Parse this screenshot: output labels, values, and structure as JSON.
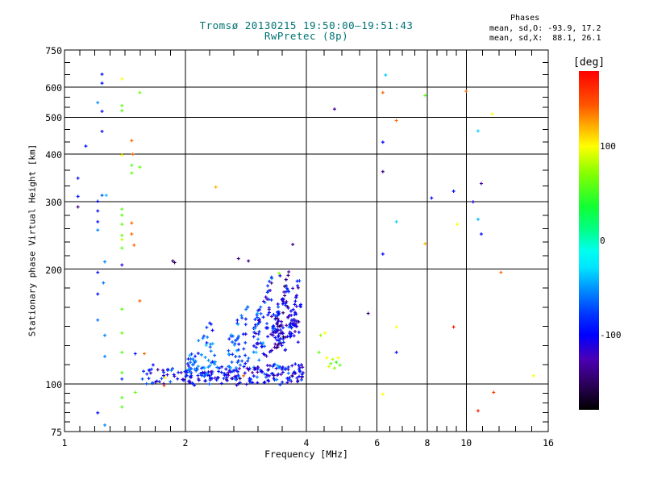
{
  "header": {
    "title": "Tromsø 20130215 19:50:00–19:51:43",
    "subtitle": "RwPretec (8p)",
    "title_color": "#007272"
  },
  "phases": {
    "heading": "Phases",
    "line_o": "mean, sd,O: -93.9, 17.2",
    "line_x": "mean, sd,X:  88.1, 26.1"
  },
  "colorbar": {
    "title": "[deg]",
    "unit": "deg",
    "range": [
      -180,
      180
    ],
    "ticks": [
      {
        "value": 100,
        "label": "100"
      },
      {
        "value": 0,
        "label": "0"
      },
      {
        "value": -100,
        "label": "-100"
      }
    ],
    "stops": [
      {
        "t": 0.0,
        "c": "#ff0000"
      },
      {
        "t": 0.1,
        "c": "#ff5500"
      },
      {
        "t": 0.16,
        "c": "#ffaa00"
      },
      {
        "t": 0.222,
        "c": "#ffff00"
      },
      {
        "t": 0.3,
        "c": "#88ff00"
      },
      {
        "t": 0.4,
        "c": "#11ff33"
      },
      {
        "t": 0.47,
        "c": "#00ff88"
      },
      {
        "t": 0.53,
        "c": "#00ffee"
      },
      {
        "t": 0.58,
        "c": "#00e5ff"
      },
      {
        "t": 0.65,
        "c": "#0088ff"
      },
      {
        "t": 0.72,
        "c": "#0033ff"
      },
      {
        "t": 0.78,
        "c": "#0000ff"
      },
      {
        "t": 0.85,
        "c": "#4b00b5"
      },
      {
        "t": 0.92,
        "c": "#2e0060"
      },
      {
        "t": 1.0,
        "c": "#000000"
      }
    ]
  },
  "chart_data": {
    "type": "scatter",
    "title": "Tromsø 20130215 19:50:00–19:51:43",
    "subtitle": "RwPretec (8p)",
    "xlabel": "Frequency [MHz]",
    "ylabel": "Stationary phase Virtual Height [km]",
    "xscale": "log",
    "yscale": "log",
    "xlim": [
      1,
      16
    ],
    "ylim": [
      75,
      750
    ],
    "grid": true,
    "x_ticks": [
      {
        "value": 1,
        "label": "1"
      },
      {
        "value": 2,
        "label": "2"
      },
      {
        "value": 4,
        "label": "4"
      },
      {
        "value": 6,
        "label": "6"
      },
      {
        "value": 8,
        "label": "8"
      },
      {
        "value": 10,
        "label": "10"
      },
      {
        "value": 16,
        "label": "16"
      }
    ],
    "y_ticks": [
      {
        "value": 75,
        "label": "75"
      },
      {
        "value": 100,
        "label": "100"
      },
      {
        "value": 200,
        "label": "200"
      },
      {
        "value": 300,
        "label": "300"
      },
      {
        "value": 400,
        "label": "400"
      },
      {
        "value": 500,
        "label": "500"
      },
      {
        "value": 600,
        "label": "600"
      },
      {
        "value": 750,
        "label": "750"
      }
    ],
    "x_gridlines": [
      2,
      4,
      6,
      8,
      10
    ],
    "y_gridlines": [
      100,
      200,
      300,
      400,
      500,
      600
    ],
    "x_minor": [
      [
        1,
        2,
        7
      ],
      [
        2,
        4,
        4
      ],
      [
        4,
        6,
        3
      ],
      [
        6,
        8,
        3
      ],
      [
        8,
        10,
        3
      ],
      [
        10,
        16,
        4
      ]
    ],
    "y_minor": [
      [
        750,
        600,
        2
      ],
      [
        600,
        500,
        2
      ],
      [
        500,
        400,
        2
      ],
      [
        400,
        300,
        2
      ],
      [
        300,
        200,
        4
      ],
      [
        200,
        100,
        5
      ],
      [
        100,
        75,
        4
      ]
    ],
    "point_value_format": "[frequency_MHz, virtual_height_km, phase_deg]",
    "points": [
      [
        1.24,
        648,
        -95
      ],
      [
        1.39,
        630,
        100
      ],
      [
        1.24,
        614,
        -95
      ],
      [
        1.54,
        580,
        60
      ],
      [
        1.21,
        546,
        -55
      ],
      [
        1.39,
        536,
        60
      ],
      [
        1.24,
        518,
        -95
      ],
      [
        1.39,
        520,
        55
      ],
      [
        1.24,
        459,
        -95
      ],
      [
        1.47,
        434,
        140
      ],
      [
        1.13,
        420,
        -95
      ],
      [
        1.39,
        398,
        100
      ],
      [
        1.48,
        400,
        140
      ],
      [
        1.47,
        374,
        55
      ],
      [
        1.54,
        370,
        60
      ],
      [
        1.47,
        357,
        60
      ],
      [
        1.08,
        346,
        -95
      ],
      [
        1.08,
        310,
        -95
      ],
      [
        1.24,
        312,
        -70
      ],
      [
        1.27,
        312,
        -40
      ],
      [
        1.21,
        301,
        -95
      ],
      [
        1.08,
        291,
        -140
      ],
      [
        1.21,
        284,
        -95
      ],
      [
        1.39,
        287,
        60
      ],
      [
        1.39,
        277,
        55
      ],
      [
        1.21,
        266,
        -95
      ],
      [
        1.47,
        264,
        140
      ],
      [
        1.39,
        262,
        60
      ],
      [
        1.21,
        253,
        -55
      ],
      [
        1.39,
        245,
        60
      ],
      [
        1.47,
        247,
        140
      ],
      [
        1.39,
        239,
        85
      ],
      [
        1.49,
        231,
        140
      ],
      [
        1.39,
        227,
        60
      ],
      [
        1.26,
        209,
        -55
      ],
      [
        1.39,
        205,
        -110
      ],
      [
        1.21,
        196,
        -95
      ],
      [
        1.25,
        184,
        -60
      ],
      [
        1.21,
        172,
        -95
      ],
      [
        1.54,
        165,
        140
      ],
      [
        1.39,
        157,
        55
      ],
      [
        1.21,
        147,
        -60
      ],
      [
        1.39,
        136,
        60
      ],
      [
        1.26,
        134,
        -55
      ],
      [
        1.26,
        118,
        -55
      ],
      [
        1.39,
        121,
        55
      ],
      [
        1.5,
        120,
        -95
      ],
      [
        1.58,
        120,
        140
      ],
      [
        1.39,
        107,
        55
      ],
      [
        1.39,
        103,
        -80
      ],
      [
        1.78,
        104,
        100
      ],
      [
        1.5,
        95,
        60
      ],
      [
        1.39,
        92,
        55
      ],
      [
        1.39,
        87,
        55
      ],
      [
        1.21,
        84,
        -95
      ],
      [
        1.26,
        78,
        -55
      ],
      [
        1.86,
        210,
        -150
      ],
      [
        1.88,
        208,
        -150
      ],
      [
        2.38,
        328,
        120
      ],
      [
        2.71,
        213,
        -145
      ],
      [
        2.87,
        210,
        -140
      ],
      [
        3.7,
        232,
        -140
      ],
      [
        3.63,
        143,
        100
      ],
      [
        3.42,
        195,
        70
      ],
      [
        3.44,
        192,
        -110
      ],
      [
        3.7,
        178,
        -120
      ],
      [
        2.79,
        105,
        140
      ],
      [
        3.05,
        137,
        100
      ],
      [
        1.72,
        101,
        100
      ],
      [
        1.77,
        99,
        140
      ],
      [
        6.3,
        645,
        -35
      ],
      [
        6.2,
        580,
        140
      ],
      [
        7.9,
        570,
        60
      ],
      [
        10.0,
        585,
        140
      ],
      [
        4.7,
        525,
        -135
      ],
      [
        11.6,
        510,
        100
      ],
      [
        6.7,
        490,
        140
      ],
      [
        10.7,
        460,
        -35
      ],
      [
        6.2,
        430,
        -95
      ],
      [
        6.2,
        360,
        -140
      ],
      [
        10.9,
        335,
        -130
      ],
      [
        9.3,
        320,
        -95
      ],
      [
        8.2,
        307,
        -95
      ],
      [
        10.4,
        300,
        -115
      ],
      [
        6.7,
        266,
        -35
      ],
      [
        9.5,
        262,
        100
      ],
      [
        10.7,
        270,
        -40
      ],
      [
        10.9,
        247,
        -95
      ],
      [
        7.9,
        233,
        120
      ],
      [
        6.2,
        219,
        -95
      ],
      [
        12.2,
        196,
        140
      ],
      [
        5.7,
        153,
        -140
      ],
      [
        4.45,
        136,
        100
      ],
      [
        6.7,
        141,
        100
      ],
      [
        9.3,
        141,
        170
      ],
      [
        6.7,
        121,
        -95
      ],
      [
        14.7,
        105,
        100
      ],
      [
        11.7,
        95,
        155
      ],
      [
        6.2,
        94,
        100
      ],
      [
        10.7,
        85,
        170
      ],
      [
        4.34,
        134,
        75
      ],
      [
        4.3,
        121,
        60
      ],
      [
        4.5,
        117,
        100
      ],
      [
        4.6,
        113,
        60
      ],
      [
        4.65,
        116,
        80
      ],
      [
        4.75,
        114,
        45
      ],
      [
        4.8,
        117,
        100
      ],
      [
        4.85,
        112,
        60
      ],
      [
        4.55,
        111,
        90
      ],
      [
        4.7,
        110,
        70
      ]
    ],
    "clusters": [
      {
        "name": "echo-bottom-band-left",
        "shape": "band",
        "f": [
          1.55,
          2.75
        ],
        "h": [
          100,
          111
        ],
        "n": 130,
        "phase": [
          -95,
          20
        ]
      },
      {
        "name": "echo-bottom-band-right",
        "shape": "band",
        "f": [
          2.8,
          3.95
        ],
        "h": [
          100,
          112
        ],
        "n": 100,
        "phase": [
          -100,
          22
        ]
      },
      {
        "name": "echo-branch-1",
        "shape": "rise",
        "f": [
          2.0,
          2.38
        ],
        "h": [
          108,
          148
        ],
        "n": 50,
        "phase": [
          -65,
          18
        ],
        "jitter": 7
      },
      {
        "name": "echo-branch-2",
        "shape": "rise",
        "f": [
          2.55,
          2.88
        ],
        "h": [
          112,
          168
        ],
        "n": 45,
        "phase": [
          -70,
          20
        ],
        "jitter": 9
      },
      {
        "name": "echo-branch-3",
        "shape": "rise",
        "f": [
          2.95,
          3.28
        ],
        "h": [
          118,
          196
        ],
        "n": 70,
        "phase": [
          -95,
          25
        ],
        "jitter": 12
      },
      {
        "name": "echo-branch-4",
        "shape": "rise",
        "f": [
          3.3,
          3.62
        ],
        "h": [
          122,
          200
        ],
        "n": 95,
        "phase": [
          -110,
          25
        ],
        "jitter": 14
      },
      {
        "name": "echo-branch-5",
        "shape": "rise",
        "f": [
          3.62,
          3.88
        ],
        "h": [
          128,
          196
        ],
        "n": 50,
        "phase": [
          -105,
          22
        ],
        "jitter": 12
      }
    ]
  }
}
